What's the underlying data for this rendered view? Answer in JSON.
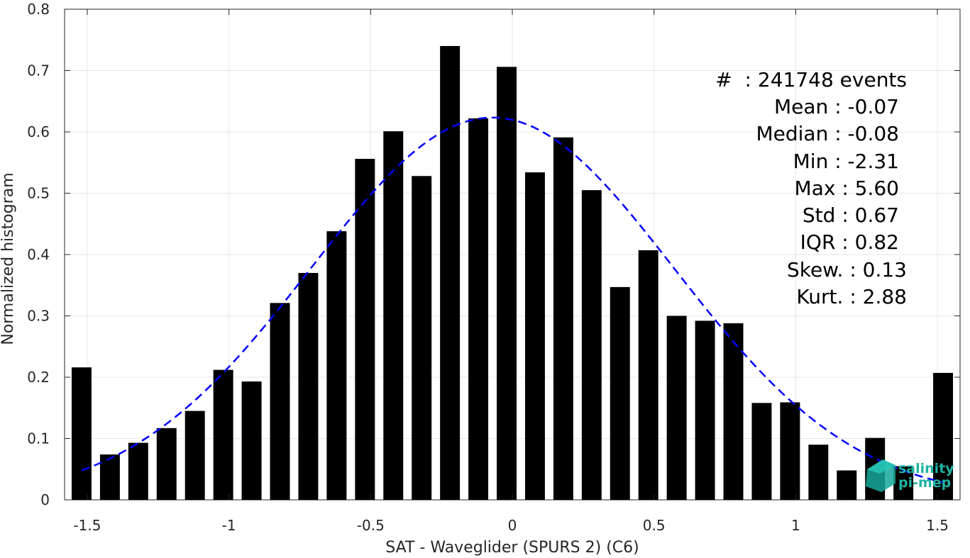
{
  "chart_data": {
    "type": "bar",
    "xlabel": "SAT - Waveglider (SPURS 2) (C6)",
    "ylabel": "Normalized histogram",
    "xlim": [
      -1.58,
      1.58
    ],
    "ylim": [
      0,
      0.8
    ],
    "xticks": [
      -1.5,
      -1,
      -0.5,
      0,
      0.5,
      1,
      1.5
    ],
    "xtick_labels": [
      "-1.5",
      "-1",
      "-0.5",
      "0",
      "0.5",
      "1",
      "1.5"
    ],
    "yticks": [
      0,
      0.1,
      0.2,
      0.3,
      0.4,
      0.5,
      0.6,
      0.7,
      0.8
    ],
    "ytick_labels": [
      "0",
      "0.1",
      "0.2",
      "0.3",
      "0.4",
      "0.5",
      "0.6",
      "0.7",
      "0.8"
    ],
    "grid": true,
    "bar_color": "#000000",
    "fit_color": "#0000ff",
    "bins": [
      {
        "x": -1.52,
        "y": 0.216
      },
      {
        "x": -1.42,
        "y": 0.074
      },
      {
        "x": -1.32,
        "y": 0.093
      },
      {
        "x": -1.22,
        "y": 0.117
      },
      {
        "x": -1.12,
        "y": 0.145
      },
      {
        "x": -1.02,
        "y": 0.212
      },
      {
        "x": -0.92,
        "y": 0.193
      },
      {
        "x": -0.82,
        "y": 0.321
      },
      {
        "x": -0.72,
        "y": 0.37
      },
      {
        "x": -0.62,
        "y": 0.438
      },
      {
        "x": -0.52,
        "y": 0.556
      },
      {
        "x": -0.42,
        "y": 0.601
      },
      {
        "x": -0.32,
        "y": 0.528
      },
      {
        "x": -0.22,
        "y": 0.74
      },
      {
        "x": -0.12,
        "y": 0.622
      },
      {
        "x": -0.02,
        "y": 0.706
      },
      {
        "x": 0.08,
        "y": 0.534
      },
      {
        "x": 0.18,
        "y": 0.591
      },
      {
        "x": 0.28,
        "y": 0.505
      },
      {
        "x": 0.38,
        "y": 0.347
      },
      {
        "x": 0.48,
        "y": 0.407
      },
      {
        "x": 0.58,
        "y": 0.3
      },
      {
        "x": 0.68,
        "y": 0.292
      },
      {
        "x": 0.78,
        "y": 0.288
      },
      {
        "x": 0.88,
        "y": 0.158
      },
      {
        "x": 0.98,
        "y": 0.159
      },
      {
        "x": 1.08,
        "y": 0.09
      },
      {
        "x": 1.18,
        "y": 0.048
      },
      {
        "x": 1.28,
        "y": 0.101
      },
      {
        "x": 1.38,
        "y": 0.055
      },
      {
        "x": 1.52,
        "y": 0.207
      }
    ],
    "bar_width": 0.07,
    "fit": {
      "type": "normal",
      "mean": -0.07,
      "std": 0.64,
      "x_range": [
        -1.52,
        1.52
      ]
    }
  },
  "stats": [
    {
      "label": "#  : 241748 events"
    },
    {
      "label": "Mean : -0.07"
    },
    {
      "label": "Median : -0.08"
    },
    {
      "label": "Min : -2.31"
    },
    {
      "label": "Max : 5.60"
    },
    {
      "label": "Std : 0.67"
    },
    {
      "label": "IQR : 0.82"
    },
    {
      "label": "Skew. : 0.13"
    },
    {
      "label": "Kurt. : 2.88"
    }
  ],
  "logo": {
    "line1": "salinity",
    "line2": "pi-mep",
    "color": "#1fb3a4"
  }
}
